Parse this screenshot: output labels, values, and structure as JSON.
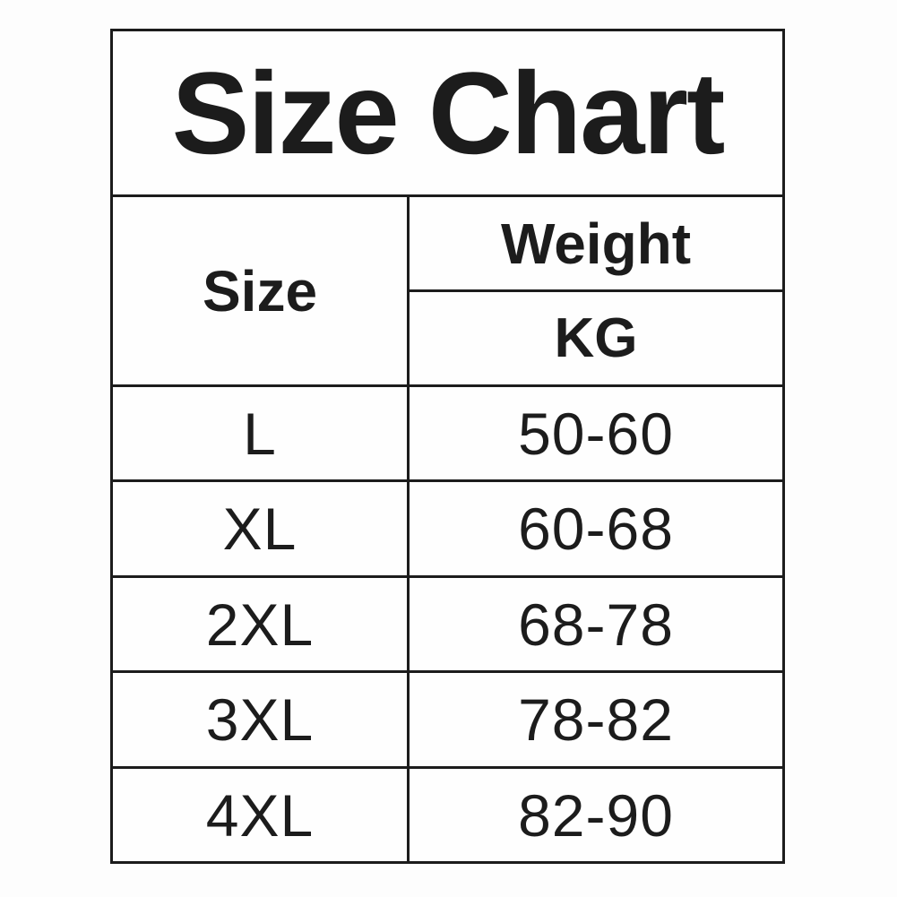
{
  "page_title": "Size Chart",
  "table": {
    "title": "Size Chart",
    "headers": {
      "size": "Size",
      "weight": "Weight",
      "unit": "KG"
    },
    "rows": [
      {
        "size": "L",
        "weight_kg": "50-60"
      },
      {
        "size": "XL",
        "weight_kg": "60-68"
      },
      {
        "size": "2XL",
        "weight_kg": "68-78"
      },
      {
        "size": "3XL",
        "weight_kg": "78-82"
      },
      {
        "size": "4XL",
        "weight_kg": "82-90"
      }
    ]
  },
  "colors": {
    "text": "#1c1c1c",
    "grid_lines": "#1c1c1c",
    "cell_background": "#fefefe",
    "page_background": "#fdfdfd"
  },
  "chart_data": {
    "type": "table",
    "title": "Size Chart",
    "columns": [
      "Size",
      "Weight KG"
    ],
    "rows": [
      [
        "L",
        "50-60"
      ],
      [
        "XL",
        "60-68"
      ],
      [
        "2XL",
        "68-78"
      ],
      [
        "3XL",
        "78-82"
      ],
      [
        "4XL",
        "82-90"
      ]
    ],
    "weight_ranges_kg": {
      "L": [
        50,
        60
      ],
      "XL": [
        60,
        68
      ],
      "2XL": [
        68,
        78
      ],
      "3XL": [
        78,
        82
      ],
      "4XL": [
        82,
        90
      ]
    }
  }
}
